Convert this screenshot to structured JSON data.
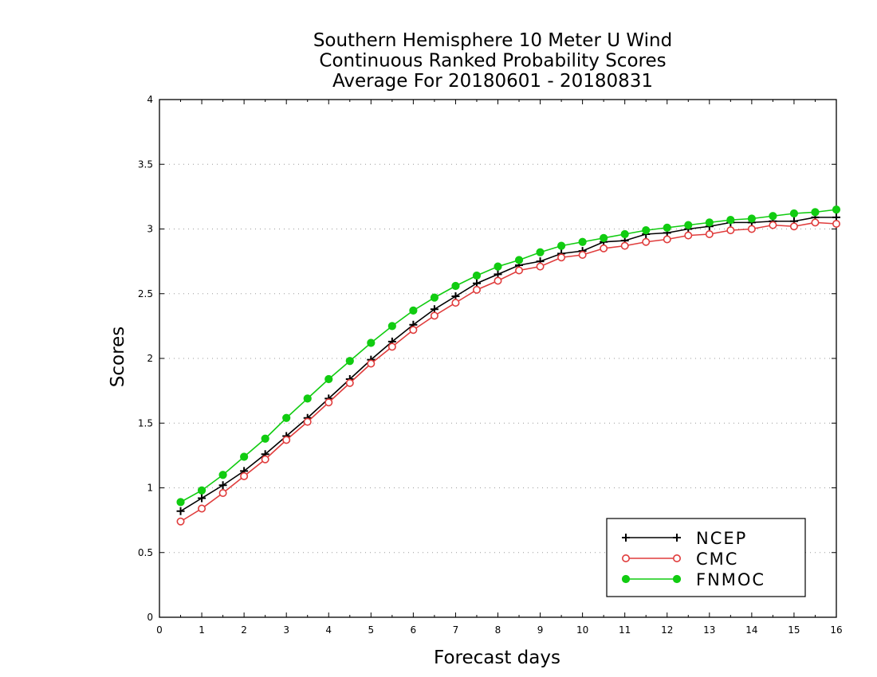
{
  "chart_data": {
    "type": "line",
    "title": [
      "Southern Hemisphere 10 Meter U Wind",
      "Continuous Ranked Probability Scores",
      "Average For 20180601 - 20180831"
    ],
    "xlabel": "Forecast days",
    "ylabel": "Scores",
    "xlim": [
      0,
      16
    ],
    "ylim": [
      0,
      4
    ],
    "xticks": [
      "0",
      "1",
      "2",
      "3",
      "4",
      "5",
      "6",
      "7",
      "8",
      "9",
      "10",
      "11",
      "12",
      "13",
      "14",
      "15",
      "16"
    ],
    "yticks": [
      "0",
      "0.5",
      "1",
      "1.5",
      "2",
      "2.5",
      "3",
      "3.5",
      "4"
    ],
    "grid": true,
    "legend_position": "bottom-right",
    "x": [
      0.5,
      1,
      1.5,
      2,
      2.5,
      3,
      3.5,
      4,
      4.5,
      5,
      5.5,
      6,
      6.5,
      7,
      7.5,
      8,
      8.5,
      9,
      9.5,
      10,
      10.5,
      11,
      11.5,
      12,
      12.5,
      13,
      13.5,
      14,
      14.5,
      15,
      15.5,
      16
    ],
    "series": [
      {
        "name": "NCEP",
        "color": "#000000",
        "marker": "plus",
        "values": [
          0.82,
          0.92,
          1.02,
          1.13,
          1.26,
          1.4,
          1.54,
          1.69,
          1.84,
          1.99,
          2.13,
          2.26,
          2.38,
          2.48,
          2.58,
          2.65,
          2.72,
          2.75,
          2.81,
          2.83,
          2.9,
          2.91,
          2.96,
          2.97,
          3.0,
          3.02,
          3.05,
          3.05,
          3.06,
          3.06,
          3.09,
          3.09
        ]
      },
      {
        "name": "CMC",
        "color": "#e03c3c",
        "marker": "open-circle",
        "values": [
          0.74,
          0.84,
          0.96,
          1.09,
          1.22,
          1.37,
          1.51,
          1.66,
          1.81,
          1.96,
          2.09,
          2.22,
          2.33,
          2.43,
          2.53,
          2.6,
          2.68,
          2.71,
          2.78,
          2.8,
          2.85,
          2.87,
          2.9,
          2.92,
          2.95,
          2.96,
          2.99,
          3.0,
          3.03,
          3.02,
          3.05,
          3.04
        ]
      },
      {
        "name": "FNMOC",
        "color": "#11cc11",
        "marker": "filled-circle",
        "values": [
          0.89,
          0.98,
          1.1,
          1.24,
          1.38,
          1.54,
          1.69,
          1.84,
          1.98,
          2.12,
          2.25,
          2.37,
          2.47,
          2.56,
          2.64,
          2.71,
          2.76,
          2.82,
          2.87,
          2.9,
          2.93,
          2.96,
          2.99,
          3.01,
          3.03,
          3.05,
          3.07,
          3.08,
          3.1,
          3.12,
          3.13,
          3.15
        ]
      }
    ]
  }
}
